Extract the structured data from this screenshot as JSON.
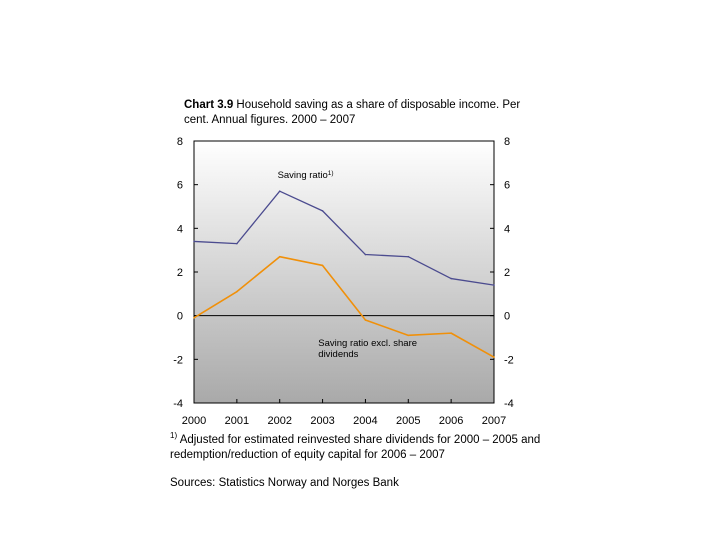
{
  "chart_data": {
    "type": "line",
    "title_bold": "Chart 3.9",
    "title": "Household saving as a share of disposable income. Per cent. Annual figures. 2000 – 2007",
    "categories": [
      "2000",
      "2001",
      "2002",
      "2003",
      "2004",
      "2005",
      "2006",
      "2007"
    ],
    "ylim": [
      -4,
      8
    ],
    "yticks": [
      8,
      6,
      4,
      2,
      0,
      -2,
      -4
    ],
    "ytick_labels": [
      "8",
      "6",
      "4",
      "2",
      "0",
      "-2",
      "-4"
    ],
    "series": [
      {
        "name": "Saving ratio",
        "label": "Saving ratio",
        "label_sup": "1)",
        "color": "#4b4b8f",
        "values": [
          3.4,
          3.3,
          5.7,
          4.8,
          2.8,
          2.7,
          1.7,
          1.4
        ]
      },
      {
        "name": "Saving ratio excl. share dividends",
        "label_line1": "Saving ratio excl. share",
        "label_line2": "dividends",
        "color": "#f0900a",
        "values": [
          -0.1,
          1.1,
          2.7,
          2.3,
          -0.2,
          -0.9,
          -0.8,
          -1.9
        ]
      }
    ]
  },
  "footnote": {
    "marker": "1)",
    "text": "Adjusted for estimated reinvested share dividends for 2000 – 2005 and redemption/reduction of equity capital for 2006 – 2007"
  },
  "sources": "Sources: Statistics Norway and Norges Bank"
}
